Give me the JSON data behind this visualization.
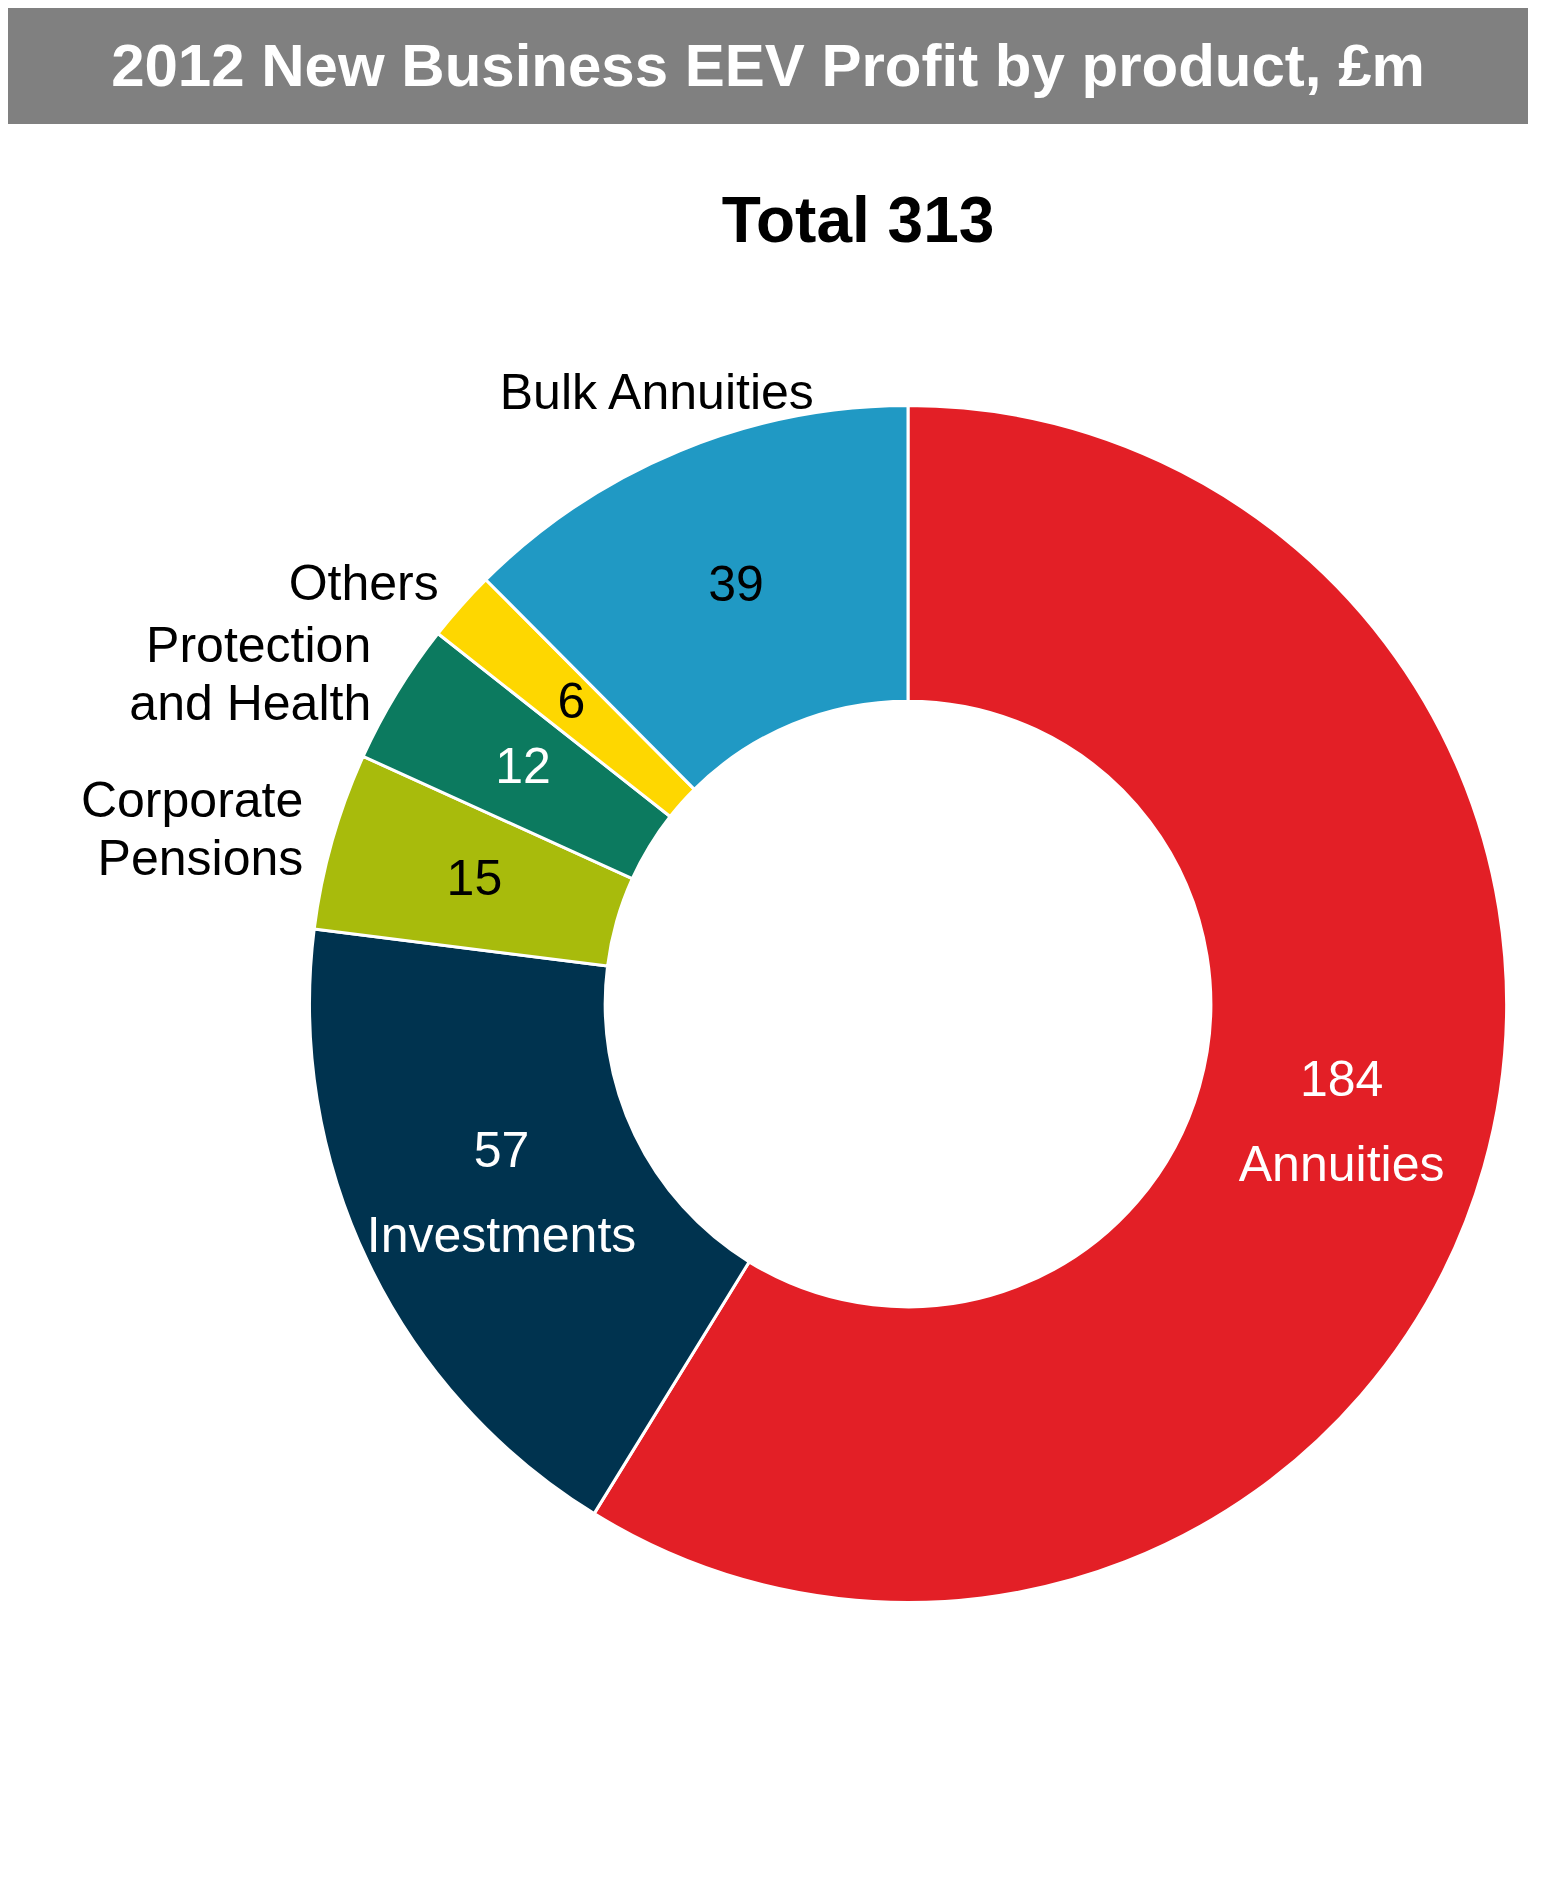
{
  "chart_data": {
    "type": "donut",
    "title": "2012 New Business EEV Profit by product, £m",
    "subtitle": "Total 313",
    "categories": [
      "Annuities",
      "Investments",
      "Corporate Pensions",
      "Protection and Health",
      "Others",
      "Bulk Annuities"
    ],
    "values": [
      184,
      57,
      15,
      12,
      6,
      39
    ],
    "colors": [
      "#e31f26",
      "#00334f",
      "#a8bb0c",
      "#0c7a5f",
      "#fed700",
      "#2099c4"
    ],
    "data_labels": true,
    "legend": false
  }
}
